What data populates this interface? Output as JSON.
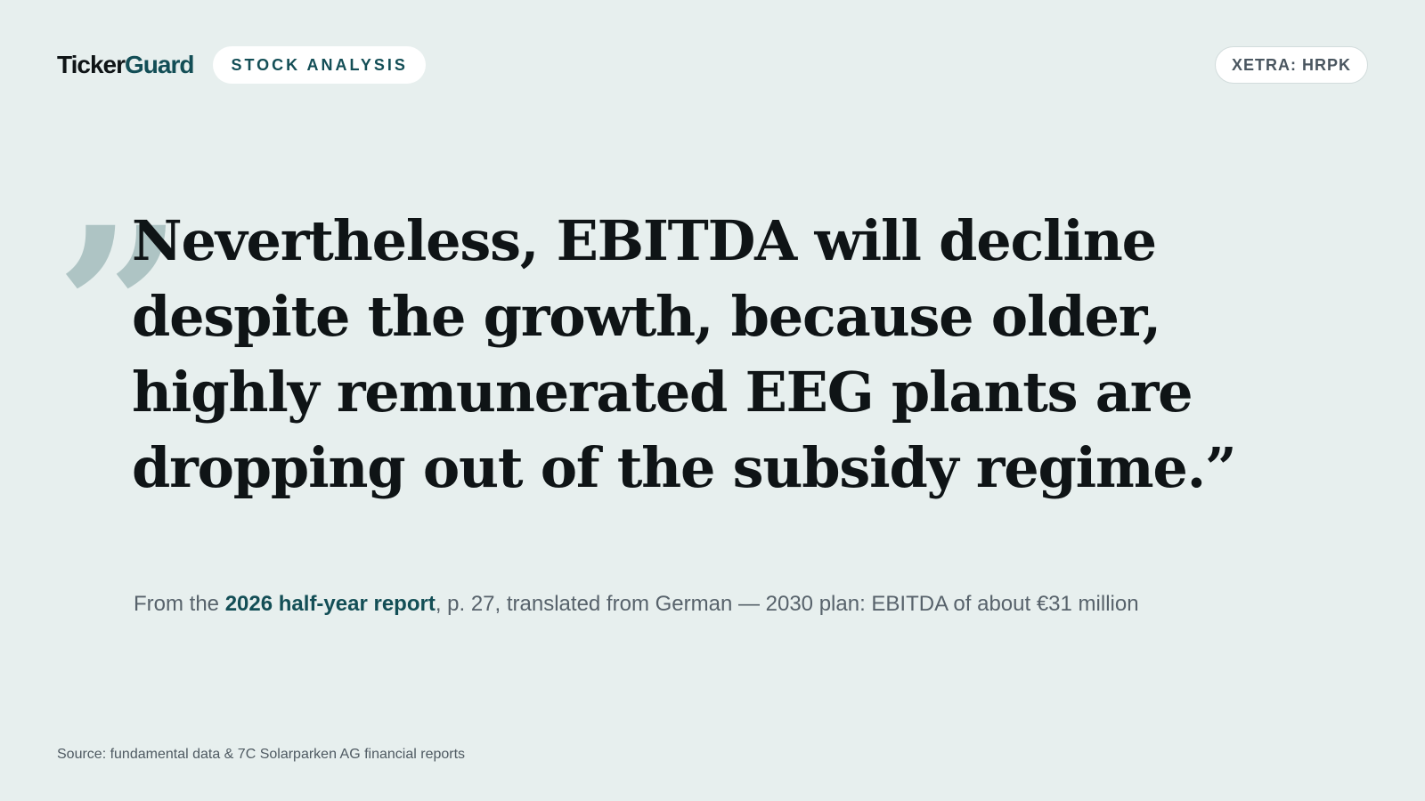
{
  "header": {
    "logo_part_1": "Ticker",
    "logo_part_2": "Guard",
    "category_label": "STOCK ANALYSIS",
    "ticker": "XETRA: HRPK"
  },
  "quote": {
    "open_mark": "”",
    "text": "Nevertheless, EBITDA will decline despite the growth, because older, highly remunerated EEG plants are dropping out of the subsidy regime.”"
  },
  "citation": {
    "prefix": "From the ",
    "highlight": "2026 half-year report",
    "suffix": ", p. 27, translated from German — 2030 plan: EBITDA of about €31 million"
  },
  "footer": {
    "source": "Source: fundamental data & 7C Solarparken AG financial reports"
  },
  "colors": {
    "background": "#e7efee",
    "accent": "#134e56",
    "quote_mark": "#aec4c4",
    "text": "#0f1416",
    "muted": "#57626b"
  }
}
